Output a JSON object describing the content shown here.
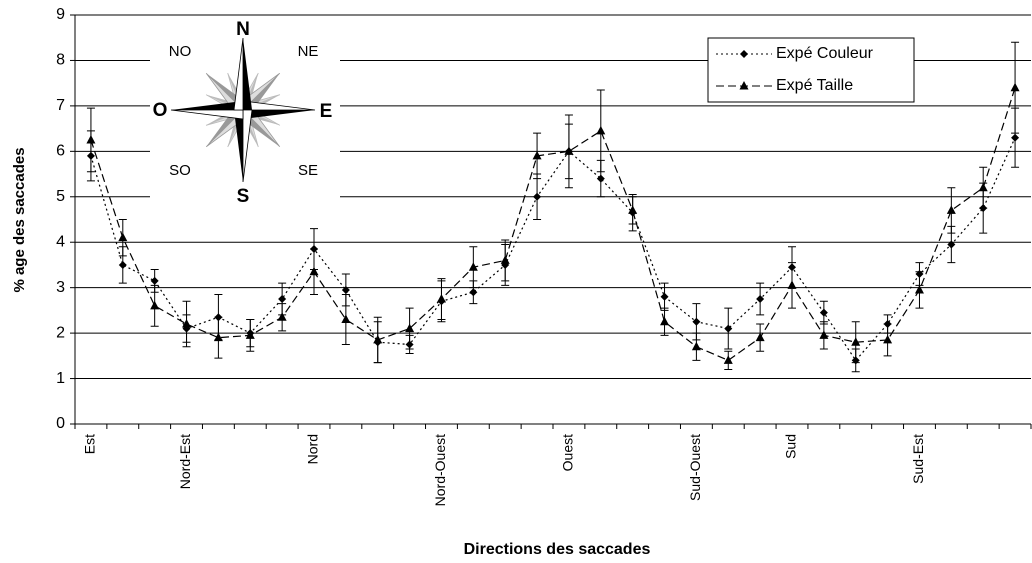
{
  "chart_data": {
    "type": "line",
    "x_label": "Directions des saccades",
    "y_label": "% age des saccades",
    "categories": [
      "Est",
      null,
      null,
      "Nord-Est",
      null,
      null,
      null,
      "Nord",
      null,
      null,
      null,
      "Nord-Ouest",
      null,
      null,
      null,
      "Ouest",
      null,
      null,
      null,
      "Sud-Ouest",
      null,
      null,
      "Sud",
      null,
      null,
      null,
      "Sud-Est",
      null,
      null,
      null
    ],
    "series": [
      {
        "name": "Expé Couleur",
        "color": "#000000",
        "marker": "diamond",
        "dash": "2,3",
        "values": [
          5.9,
          3.5,
          3.15,
          2.1,
          2.35,
          2.0,
          2.75,
          3.85,
          2.95,
          1.8,
          1.75,
          2.7,
          2.9,
          3.5,
          5.0,
          6.0,
          5.4,
          4.65,
          2.8,
          2.25,
          2.1,
          2.75,
          3.45,
          2.45,
          1.4,
          2.2,
          3.3,
          3.95,
          4.75,
          6.3
        ],
        "errors": [
          0.55,
          0.4,
          0.25,
          0.3,
          0.5,
          0.3,
          0.35,
          0.45,
          0.35,
          0.45,
          0.2,
          0.45,
          0.25,
          0.45,
          0.5,
          0.8,
          0.4,
          0.4,
          0.3,
          0.4,
          0.45,
          0.35,
          0.45,
          0.25,
          0.25,
          0.2,
          0.25,
          0.4,
          0.55,
          0.65
        ]
      },
      {
        "name": "Expé Taille",
        "color": "#000000",
        "marker": "triangle",
        "dash": "8,4",
        "values": [
          6.25,
          4.1,
          2.6,
          2.2,
          1.9,
          1.95,
          2.35,
          3.35,
          2.3,
          1.85,
          2.1,
          2.75,
          3.45,
          3.6,
          5.9,
          6.0,
          6.45,
          4.7,
          2.25,
          1.7,
          1.4,
          1.9,
          3.05,
          1.95,
          1.8,
          1.85,
          2.95,
          4.7,
          5.2,
          7.4
        ],
        "errors": [
          0.7,
          0.4,
          0.45,
          0.5,
          0.45,
          0.35,
          0.3,
          0.5,
          0.55,
          0.5,
          0.45,
          0.45,
          0.45,
          0.45,
          0.5,
          0.6,
          0.9,
          0.3,
          0.3,
          0.3,
          0.2,
          0.3,
          0.5,
          0.3,
          0.45,
          0.35,
          0.4,
          0.5,
          0.45,
          1.0
        ]
      }
    ],
    "ylim": [
      0,
      9
    ],
    "yticks": [
      0,
      1,
      2,
      3,
      4,
      5,
      6,
      7,
      8,
      9
    ],
    "grid": true,
    "legend": "upper right"
  },
  "compass": {
    "n": "N",
    "ne": "NE",
    "e": "E",
    "se": "SE",
    "s": "S",
    "so": "SO",
    "o": "O",
    "no": "NO"
  }
}
